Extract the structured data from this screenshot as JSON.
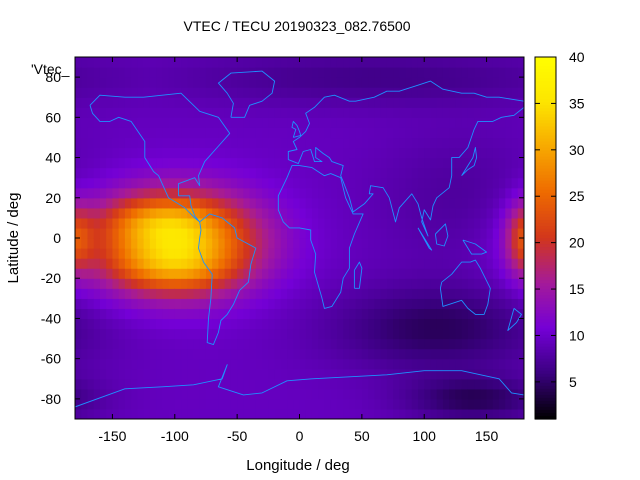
{
  "chart_data": {
    "type": "heatmap",
    "title": "VTEC / TECU 20190323_082.76500",
    "xlabel": "Longitude / deg",
    "ylabel": "Latitude / deg",
    "xlim": [
      -180,
      180
    ],
    "ylim": [
      -90,
      90
    ],
    "x_ticks": [
      -150,
      -100,
      -50,
      0,
      50,
      100,
      150
    ],
    "y_ticks": [
      -80,
      -60,
      -40,
      -20,
      0,
      20,
      40,
      60,
      80
    ],
    "colorbar": {
      "range": [
        1,
        40
      ],
      "ticks": [
        5,
        10,
        15,
        20,
        25,
        30,
        35,
        40
      ],
      "colors": [
        "#000000",
        "#3a007f",
        "#7400d6",
        "#a41a9a",
        "#d2361c",
        "#ee6a00",
        "#f7a800",
        "#fde500",
        "#ffff00"
      ]
    },
    "series_key": "'Vtec_",
    "grid": {
      "lon_step_deg": 5,
      "lat_step_deg": 5,
      "background_vtec": 9.5,
      "features": [
        {
          "name": "equatorial-anomaly-main",
          "lon": -100,
          "lat": -2,
          "sigma_lon": 45,
          "sigma_lat": 17,
          "peak_vtec": 25
        },
        {
          "name": "anomaly-north-crest",
          "lon": -115,
          "lat": 10,
          "sigma_lon": 30,
          "sigma_lat": 7,
          "peak_vtec": 4
        },
        {
          "name": "anomaly-south-crest",
          "lon": -100,
          "lat": -16,
          "sigma_lon": 32,
          "sigma_lat": 7,
          "peak_vtec": 4
        },
        {
          "name": "east-edge-wrap",
          "lon": 180,
          "lat": 0,
          "sigma_lon": 10,
          "sigma_lat": 12,
          "peak_vtec": 10
        },
        {
          "name": "south-indian-ocean-trough",
          "lon": 110,
          "lat": -45,
          "sigma_lon": 60,
          "sigma_lat": 15,
          "peak_vtec": -5
        },
        {
          "name": "antarctic-trough",
          "lon": 140,
          "lat": -80,
          "sigma_lon": 40,
          "sigma_lat": 8,
          "peak_vtec": -5
        },
        {
          "name": "north-polar-low",
          "lon": 60,
          "lat": 80,
          "sigma_lon": 120,
          "sigma_lat": 10,
          "peak_vtec": -3
        },
        {
          "name": "pacific-low",
          "lon": 130,
          "lat": 20,
          "sigma_lon": 50,
          "sigma_lat": 25,
          "peak_vtec": -2
        }
      ]
    },
    "coastlines": [
      {
        "name": "north-america",
        "points": [
          [
            -168,
            66
          ],
          [
            -160,
            71
          ],
          [
            -140,
            70
          ],
          [
            -125,
            70
          ],
          [
            -95,
            72
          ],
          [
            -80,
            63
          ],
          [
            -65,
            60
          ],
          [
            -56,
            52
          ],
          [
            -66,
            45
          ],
          [
            -76,
            38
          ],
          [
            -81,
            31
          ],
          [
            -80,
            26
          ],
          [
            -84,
            30
          ],
          [
            -97,
            27
          ],
          [
            -97,
            21
          ],
          [
            -88,
            21
          ],
          [
            -87,
            16
          ],
          [
            -84,
            11
          ],
          [
            -80,
            8
          ],
          [
            -84,
            10
          ],
          [
            -92,
            15
          ],
          [
            -105,
            20
          ],
          [
            -113,
            31
          ],
          [
            -117,
            33
          ],
          [
            -124,
            40
          ],
          [
            -124,
            48
          ],
          [
            -135,
            58
          ],
          [
            -145,
            60
          ],
          [
            -152,
            58
          ],
          [
            -160,
            58
          ],
          [
            -166,
            62
          ],
          [
            -168,
            66
          ]
        ]
      },
      {
        "name": "south-america",
        "points": [
          [
            -80,
            8
          ],
          [
            -72,
            12
          ],
          [
            -62,
            10
          ],
          [
            -52,
            5
          ],
          [
            -50,
            0
          ],
          [
            -35,
            -5
          ],
          [
            -39,
            -13
          ],
          [
            -41,
            -22
          ],
          [
            -48,
            -26
          ],
          [
            -53,
            -33
          ],
          [
            -58,
            -38
          ],
          [
            -63,
            -41
          ],
          [
            -65,
            -47
          ],
          [
            -69,
            -53
          ],
          [
            -74,
            -52
          ],
          [
            -73,
            -40
          ],
          [
            -71,
            -30
          ],
          [
            -70,
            -18
          ],
          [
            -77,
            -12
          ],
          [
            -81,
            -5
          ],
          [
            -80,
            0
          ],
          [
            -79,
            4
          ],
          [
            -80,
            8
          ]
        ]
      },
      {
        "name": "greenland",
        "points": [
          [
            -55,
            60
          ],
          [
            -44,
            60
          ],
          [
            -40,
            66
          ],
          [
            -30,
            68
          ],
          [
            -22,
            72
          ],
          [
            -20,
            78
          ],
          [
            -30,
            83
          ],
          [
            -55,
            82
          ],
          [
            -65,
            77
          ],
          [
            -58,
            72
          ],
          [
            -53,
            67
          ],
          [
            -55,
            60
          ]
        ]
      },
      {
        "name": "africa",
        "points": [
          [
            -17,
            21
          ],
          [
            -17,
            14
          ],
          [
            -13,
            8
          ],
          [
            -8,
            5
          ],
          [
            0,
            5
          ],
          [
            9,
            4
          ],
          [
            9,
            -1
          ],
          [
            13,
            -8
          ],
          [
            12,
            -17
          ],
          [
            18,
            -30
          ],
          [
            20,
            -35
          ],
          [
            26,
            -34
          ],
          [
            33,
            -27
          ],
          [
            35,
            -20
          ],
          [
            40,
            -15
          ],
          [
            40,
            -5
          ],
          [
            44,
            2
          ],
          [
            51,
            12
          ],
          [
            43,
            12
          ],
          [
            37,
            20
          ],
          [
            33,
            30
          ],
          [
            25,
            32
          ],
          [
            20,
            31
          ],
          [
            10,
            35
          ],
          [
            0,
            36
          ],
          [
            -6,
            36
          ],
          [
            -10,
            30
          ],
          [
            -17,
            21
          ]
        ]
      },
      {
        "name": "eurasia",
        "points": [
          [
            -9,
            39
          ],
          [
            -9,
            43
          ],
          [
            -2,
            44
          ],
          [
            -5,
            48
          ],
          [
            0,
            50
          ],
          [
            5,
            53
          ],
          [
            8,
            57
          ],
          [
            5,
            62
          ],
          [
            12,
            65
          ],
          [
            20,
            70
          ],
          [
            28,
            71
          ],
          [
            40,
            68
          ],
          [
            45,
            68
          ],
          [
            60,
            70
          ],
          [
            70,
            73
          ],
          [
            80,
            73
          ],
          [
            95,
            76
          ],
          [
            105,
            78
          ],
          [
            115,
            74
          ],
          [
            130,
            72
          ],
          [
            140,
            72
          ],
          [
            150,
            70
          ],
          [
            160,
            70
          ],
          [
            170,
            69
          ],
          [
            180,
            68
          ],
          [
            180,
            65
          ],
          [
            172,
            61
          ],
          [
            162,
            60
          ],
          [
            155,
            58
          ],
          [
            143,
            58
          ],
          [
            140,
            54
          ],
          [
            135,
            45
          ],
          [
            128,
            40
          ],
          [
            122,
            40
          ],
          [
            122,
            31
          ],
          [
            120,
            25
          ],
          [
            110,
            20
          ],
          [
            107,
            16
          ],
          [
            105,
            9
          ],
          [
            100,
            14
          ],
          [
            98,
            8
          ],
          [
            103,
            1
          ],
          [
            98,
            10
          ],
          [
            95,
            17
          ],
          [
            90,
            22
          ],
          [
            80,
            15
          ],
          [
            77,
            8
          ],
          [
            72,
            20
          ],
          [
            67,
            25
          ],
          [
            57,
            26
          ],
          [
            56,
            22
          ],
          [
            59,
            22
          ],
          [
            52,
            17
          ],
          [
            43,
            13
          ],
          [
            40,
            20
          ],
          [
            35,
            28
          ],
          [
            33,
            31
          ],
          [
            35,
            36
          ],
          [
            26,
            38
          ],
          [
            24,
            40
          ],
          [
            19,
            42
          ],
          [
            13,
            45
          ],
          [
            13,
            40
          ],
          [
            18,
            38
          ],
          [
            12,
            38
          ],
          [
            9,
            44
          ],
          [
            3,
            43
          ],
          [
            -1,
            37
          ],
          [
            -9,
            39
          ]
        ]
      },
      {
        "name": "australia",
        "points": [
          [
            114,
            -22
          ],
          [
            122,
            -18
          ],
          [
            130,
            -12
          ],
          [
            137,
            -12
          ],
          [
            141,
            -11
          ],
          [
            145,
            -15
          ],
          [
            153,
            -25
          ],
          [
            151,
            -33
          ],
          [
            148,
            -38
          ],
          [
            141,
            -38
          ],
          [
            135,
            -35
          ],
          [
            130,
            -31
          ],
          [
            115,
            -34
          ],
          [
            113,
            -25
          ],
          [
            114,
            -22
          ]
        ]
      },
      {
        "name": "antarctica",
        "points": [
          [
            -180,
            -84
          ],
          [
            -140,
            -75
          ],
          [
            -110,
            -74
          ],
          [
            -85,
            -73
          ],
          [
            -62,
            -70
          ],
          [
            -58,
            -63
          ],
          [
            -65,
            -74
          ],
          [
            -45,
            -78
          ],
          [
            -30,
            -77
          ],
          [
            -10,
            -71
          ],
          [
            10,
            -70
          ],
          [
            40,
            -69
          ],
          [
            70,
            -68
          ],
          [
            100,
            -66
          ],
          [
            130,
            -66
          ],
          [
            160,
            -70
          ],
          [
            170,
            -77
          ],
          [
            180,
            -78
          ]
        ]
      },
      {
        "name": "british-isles",
        "points": [
          [
            -5,
            50
          ],
          [
            1,
            51
          ],
          [
            0,
            53
          ],
          [
            -2,
            56
          ],
          [
            -5,
            58
          ],
          [
            -6,
            55
          ],
          [
            -3,
            54
          ],
          [
            -5,
            50
          ]
        ]
      },
      {
        "name": "madagascar",
        "points": [
          [
            44,
            -25
          ],
          [
            48,
            -25
          ],
          [
            50,
            -15
          ],
          [
            48,
            -12
          ],
          [
            44,
            -16
          ],
          [
            44,
            -25
          ]
        ]
      },
      {
        "name": "japan",
        "points": [
          [
            130,
            31
          ],
          [
            135,
            34
          ],
          [
            140,
            36
          ],
          [
            142,
            40
          ],
          [
            141,
            45
          ],
          [
            139,
            40
          ],
          [
            133,
            34
          ],
          [
            130,
            31
          ]
        ]
      },
      {
        "name": "new-guinea",
        "points": [
          [
            131,
            -1
          ],
          [
            141,
            -3
          ],
          [
            150,
            -7
          ],
          [
            146,
            -8
          ],
          [
            138,
            -8
          ],
          [
            131,
            -1
          ]
        ]
      },
      {
        "name": "borneo",
        "points": [
          [
            109,
            2
          ],
          [
            117,
            7
          ],
          [
            119,
            1
          ],
          [
            116,
            -4
          ],
          [
            110,
            -3
          ],
          [
            109,
            2
          ]
        ]
      },
      {
        "name": "sumatra",
        "points": [
          [
            95,
            5
          ],
          [
            106,
            -6
          ],
          [
            104,
            -5
          ],
          [
            95,
            5
          ]
        ]
      },
      {
        "name": "new-zealand",
        "points": [
          [
            172,
            -35
          ],
          [
            178,
            -38
          ],
          [
            174,
            -42
          ],
          [
            167,
            -46
          ],
          [
            172,
            -35
          ]
        ]
      }
    ]
  }
}
